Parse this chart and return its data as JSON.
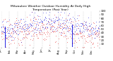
{
  "title": "Milwaukee Weather Outdoor Humidity At Daily High Temperature (Past Year)",
  "background_color": "#ffffff",
  "plot_bg_color": "#ffffff",
  "grid_color": "#888888",
  "ylim": [
    0,
    100
  ],
  "ytick_vals": [
    10,
    20,
    30,
    40,
    50,
    60,
    70,
    80,
    90,
    100
  ],
  "n_points": 365,
  "n_gridlines": 12,
  "blue_color": "#0000dd",
  "red_color": "#dd0000",
  "title_fontsize": 3.2,
  "tick_fontsize": 2.8,
  "xlabel_fontsize": 2.5,
  "spike1_idx": 14,
  "spike2_idx": 263,
  "spike1_base": 58,
  "spike2_base": 62
}
